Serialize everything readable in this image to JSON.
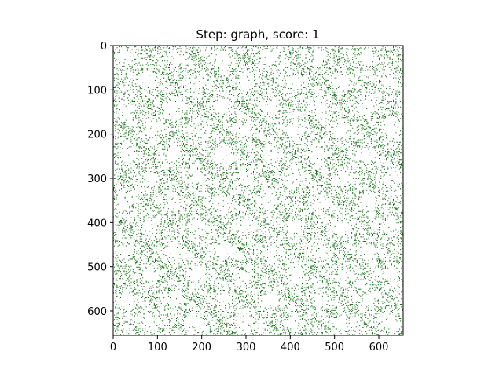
{
  "chart_data": {
    "type": "heatmap",
    "title": "Step: graph, score: 1",
    "xlabel": "",
    "ylabel": "",
    "xlim": [
      0,
      655
    ],
    "ylim": [
      655,
      0
    ],
    "x_ticks": [
      0,
      100,
      200,
      300,
      400,
      500,
      600
    ],
    "y_ticks": [
      0,
      100,
      200,
      300,
      400,
      500,
      600
    ],
    "grid": false,
    "legend": "none",
    "matrix_size": 655,
    "pattern": "symmetric sparse binary adjacency matrix with a repeating tiled structure (about six tiles per axis)",
    "nonzero_color": "#006400",
    "background_color": "#ffffff"
  }
}
